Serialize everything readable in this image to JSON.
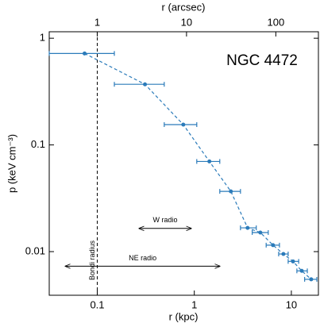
{
  "chart_data": {
    "type": "scatter",
    "xlabel": "r (kpc)",
    "x2label": "r (arcsec)",
    "ylabel": "p (keV cm⁻³)",
    "xscale": "log",
    "yscale": "log",
    "xlim": [
      0.032,
      19
    ],
    "x2lim": [
      0.29,
      300
    ],
    "ylim": [
      0.0039,
      1.15
    ],
    "xticks": [
      0.1,
      1,
      10
    ],
    "x2ticks": [
      1,
      10,
      100
    ],
    "yticks": [
      0.01,
      0.1,
      1
    ],
    "color": "#2b7bba",
    "line_style": "dashed",
    "x": [
      0.074,
      0.31,
      0.77,
      1.43,
      2.38,
      3.54,
      4.79,
      6.47,
      8.28,
      10.4,
      12.8,
      16.0
    ],
    "values": [
      0.72,
      0.37,
      0.155,
      0.07,
      0.0367,
      0.0167,
      0.0151,
      0.0115,
      0.0095,
      0.0081,
      0.0066,
      0.0055
    ],
    "x_low": [
      0.032,
      0.15,
      0.49,
      1.06,
      1.83,
      2.99,
      3.95,
      5.5,
      7.4,
      9.27,
      11.4,
      13.7
    ],
    "x_high": [
      0.15,
      0.49,
      1.06,
      1.83,
      2.99,
      4.35,
      5.78,
      7.54,
      9.27,
      11.9,
      14.6,
      18.3
    ],
    "title": "NGC 4472",
    "vline": {
      "x": 0.1,
      "label": "Bondi radius"
    },
    "annotations": [
      {
        "text": "W radio",
        "x": [
          0.27,
          0.93
        ],
        "y": 0.0165
      },
      {
        "text": "NE radio",
        "x": [
          0.047,
          1.83
        ],
        "y": 0.0073
      }
    ]
  }
}
